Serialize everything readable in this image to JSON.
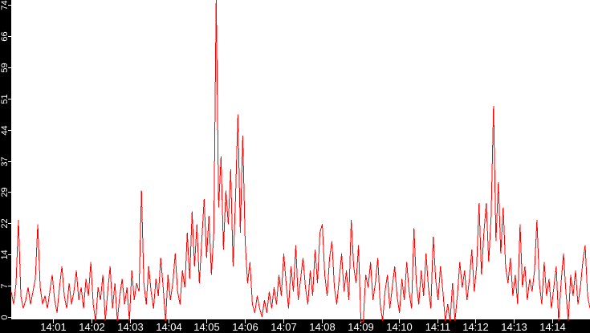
{
  "colors": {
    "line": "#ff0000",
    "axis_strip": "#000000",
    "plot_background": "#ffffff",
    "tick_text": "#ffffff",
    "tick_mark": "#ffffff"
  },
  "chart_data": {
    "type": "line",
    "title": "",
    "xlabel": "",
    "ylabel": "",
    "grid": false,
    "legend": null,
    "ylim": [
      0,
      74
    ],
    "x_tick_labels": [
      "14:01",
      "14:02",
      "14:03",
      "14:04",
      "14:05",
      "14:06",
      "14:07",
      "14:08",
      "14:09",
      "14:10",
      "14:11",
      "14:12",
      "14:13",
      "14:14"
    ],
    "y_tick_labels": [
      "0",
      "7",
      "14",
      "22",
      "29",
      "37",
      "44",
      "51",
      "59",
      "66",
      "74"
    ],
    "y_tick_values": [
      0,
      7.4,
      14.8,
      22.2,
      29.6,
      37,
      44.4,
      51.8,
      59.2,
      66.6,
      74
    ],
    "peak_clipped_at_top": true,
    "series": [
      {
        "name": "value",
        "color": "#ff0000",
        "values": [
          6,
          3,
          8,
          23,
          5,
          2,
          4,
          7,
          3,
          6,
          9,
          22,
          7,
          3,
          5,
          2,
          6,
          10,
          4,
          1,
          7,
          12,
          5,
          2,
          8,
          3,
          6,
          11,
          4,
          7,
          2,
          9,
          5,
          13,
          3,
          -1,
          7,
          4,
          10,
          -1,
          6,
          12,
          2,
          8,
          -1,
          5,
          9,
          3,
          7,
          -1,
          11,
          4,
          8,
          6,
          30,
          8,
          3,
          12,
          6,
          2,
          9,
          5,
          14,
          7,
          -1,
          10,
          4,
          8,
          15,
          6,
          3,
          11,
          7,
          20,
          9,
          25,
          12,
          22,
          8,
          18,
          28,
          14,
          24,
          10,
          20,
          76,
          26,
          38,
          16,
          30,
          22,
          35,
          12,
          28,
          48,
          20,
          43,
          18,
          8,
          13,
          3,
          1,
          5,
          2,
          0,
          4,
          1,
          6,
          2,
          7,
          3,
          10,
          5,
          15,
          8,
          2,
          12,
          6,
          17,
          4,
          9,
          14,
          7,
          3,
          11,
          5,
          16,
          8,
          20,
          22,
          10,
          5,
          14,
          18,
          7,
          3,
          9,
          15,
          6,
          11,
          4,
          23,
          12,
          8,
          17,
          -1,
          -1,
          10,
          7,
          13,
          4,
          8,
          14,
          3,
          -1,
          6,
          10,
          2,
          7,
          12,
          5,
          1,
          9,
          4,
          13,
          6,
          2,
          21,
          8,
          3,
          11,
          5,
          15,
          7,
          2,
          19,
          9,
          4,
          12,
          6,
          -1,
          3,
          -1,
          8,
          -1,
          5,
          13,
          7,
          11,
          4,
          9,
          16,
          6,
          12,
          27,
          10,
          20,
          27,
          13,
          24,
          50,
          18,
          32,
          15,
          26,
          12,
          8,
          14,
          5,
          10,
          3,
          22,
          7,
          12,
          4,
          9,
          6,
          11,
          23,
          8,
          3,
          13,
          5,
          9,
          2,
          7,
          12,
          -1,
          8,
          15,
          6,
          -1,
          10,
          5,
          11,
          3,
          7,
          13,
          17,
          5,
          2
        ]
      }
    ]
  }
}
